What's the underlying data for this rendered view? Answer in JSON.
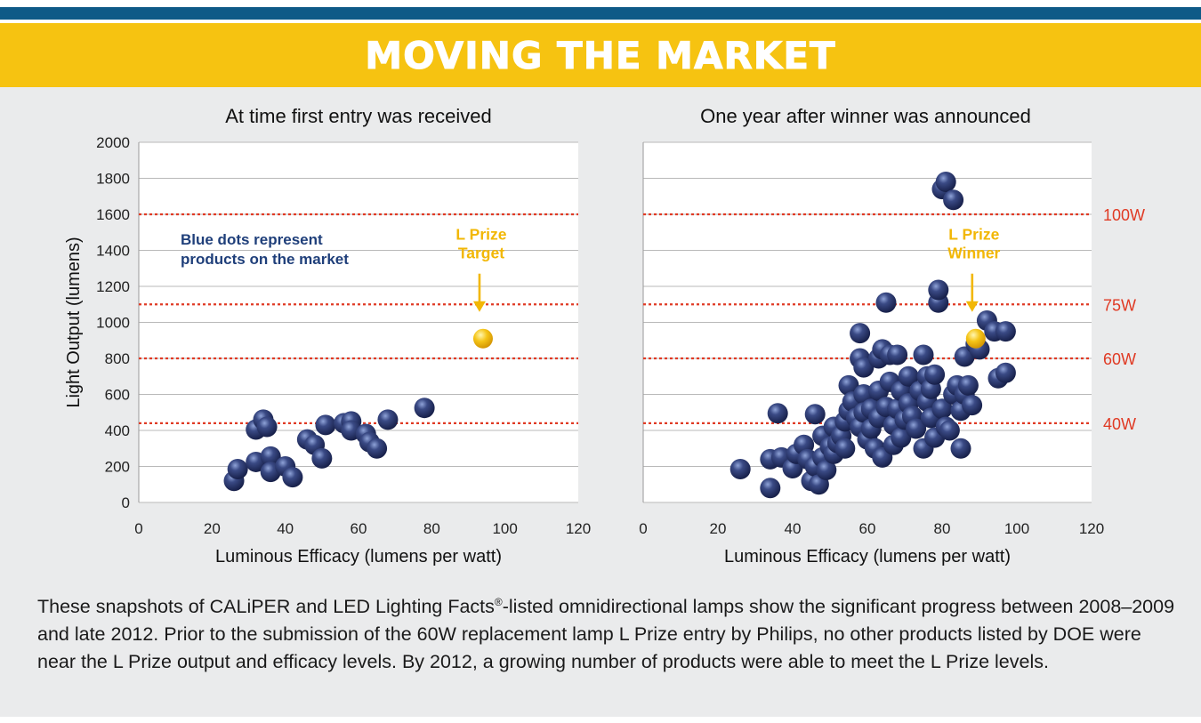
{
  "header": {
    "title": "MOVING THE MARKET"
  },
  "caption": {
    "text_before_mark": "These snapshots of CALiPER and LED Lighting Facts",
    "registered_mark": "®",
    "text_after_mark": "-listed omnidirectional lamps show the significant progress between 2008–2009 and late 2012. Prior to the submission of the 60W replacement lamp L Prize entry by Philips, no other products listed by DOE were near the L Prize output and efficacy levels. By 2012, a growing number of products were able to meet the L Prize levels."
  },
  "colors": {
    "banner": "#f6c311",
    "top_bar": "#0e5a87",
    "panel": "#eaebec",
    "dot": "#1f2a5c",
    "gold": "#f2b705",
    "reference_line": "#e03a24",
    "note_text": "#1f3f7a"
  },
  "chart_data": [
    {
      "type": "scatter",
      "title": "At time first entry was received",
      "xlabel": "Luminous Efficacy (lumens per watt)",
      "ylabel": "Light Output (lumens)",
      "xlim": [
        0,
        120
      ],
      "ylim": [
        0,
        2000
      ],
      "xticks": [
        0,
        20,
        40,
        60,
        80,
        100,
        120
      ],
      "yticks": [
        0,
        200,
        400,
        600,
        800,
        1000,
        1200,
        1400,
        1600,
        1800,
        2000
      ],
      "grid": "horizontal",
      "reference_lines": [
        {
          "y": 1600
        },
        {
          "y": 1100
        },
        {
          "y": 800
        },
        {
          "y": 440
        }
      ],
      "note": "Blue dots represent\nproducts on the market",
      "series": [
        {
          "name": "Blue dots represent products on the market",
          "points": [
            [
              26,
              120
            ],
            [
              27,
              185
            ],
            [
              32,
              405
            ],
            [
              32,
              225
            ],
            [
              34,
              460
            ],
            [
              35,
              420
            ],
            [
              36,
              255
            ],
            [
              36,
              170
            ],
            [
              40,
              200
            ],
            [
              42,
              140
            ],
            [
              46,
              350
            ],
            [
              48,
              320
            ],
            [
              50,
              245
            ],
            [
              51,
              430
            ],
            [
              56,
              440
            ],
            [
              58,
              450
            ],
            [
              58,
              400
            ],
            [
              62,
              380
            ],
            [
              63,
              335
            ],
            [
              65,
              300
            ],
            [
              68,
              460
            ],
            [
              78,
              525
            ]
          ]
        },
        {
          "name": "L Prize Target",
          "label": "L Prize\nTarget",
          "points": [
            [
              94,
              910
            ]
          ]
        }
      ]
    },
    {
      "type": "scatter",
      "title": "One year after winner was announced",
      "xlabel": "Luminous Efficacy (lumens per watt)",
      "ylabel": "",
      "xlim": [
        0,
        120
      ],
      "ylim": [
        0,
        2000
      ],
      "xticks": [
        0,
        20,
        40,
        60,
        80,
        100,
        120
      ],
      "yticks": [
        0,
        200,
        400,
        600,
        800,
        1000,
        1200,
        1400,
        1600,
        1800,
        2000
      ],
      "grid": "horizontal",
      "reference_lines": [
        {
          "y": 1600,
          "label": "100W"
        },
        {
          "y": 1100,
          "label": "75W"
        },
        {
          "y": 800,
          "label": "60W"
        },
        {
          "y": 440,
          "label": "40W"
        }
      ],
      "series": [
        {
          "name": "Blue dots",
          "points": [
            [
              26,
              185
            ],
            [
              34,
              80
            ],
            [
              34,
              240
            ],
            [
              37,
              250
            ],
            [
              36,
              495
            ],
            [
              40,
              190
            ],
            [
              41,
              270
            ],
            [
              43,
              320
            ],
            [
              44,
              240
            ],
            [
              45,
              120
            ],
            [
              46,
              200
            ],
            [
              46,
              490
            ],
            [
              47,
              100
            ],
            [
              48,
              370
            ],
            [
              48,
              250
            ],
            [
              49,
              180
            ],
            [
              50,
              310
            ],
            [
              51,
              420
            ],
            [
              51,
              270
            ],
            [
              52,
              330
            ],
            [
              53,
              370
            ],
            [
              54,
              450
            ],
            [
              54,
              300
            ],
            [
              55,
              510
            ],
            [
              55,
              650
            ],
            [
              56,
              560
            ],
            [
              57,
              470
            ],
            [
              58,
              420
            ],
            [
              58,
              940
            ],
            [
              58,
              800
            ],
            [
              59,
              750
            ],
            [
              59,
              600
            ],
            [
              59,
              500
            ],
            [
              60,
              350
            ],
            [
              61,
              520
            ],
            [
              61,
              410
            ],
            [
              62,
              300
            ],
            [
              63,
              800
            ],
            [
              63,
              620
            ],
            [
              63,
              470
            ],
            [
              64,
              850
            ],
            [
              64,
              250
            ],
            [
              65,
              1110
            ],
            [
              65,
              530
            ],
            [
              66,
              820
            ],
            [
              66,
              670
            ],
            [
              67,
              430
            ],
            [
              67,
              320
            ],
            [
              68,
              820
            ],
            [
              68,
              520
            ],
            [
              69,
              620
            ],
            [
              69,
              360
            ],
            [
              70,
              460
            ],
            [
              71,
              700
            ],
            [
              71,
              550
            ],
            [
              72,
              480
            ],
            [
              73,
              410
            ],
            [
              74,
              620
            ],
            [
              75,
              820
            ],
            [
              75,
              300
            ],
            [
              76,
              560
            ],
            [
              76,
              700
            ],
            [
              77,
              630
            ],
            [
              77,
              470
            ],
            [
              78,
              360
            ],
            [
              78,
              710
            ],
            [
              79,
              1110
            ],
            [
              79,
              1180
            ],
            [
              80,
              1740
            ],
            [
              80,
              520
            ],
            [
              81,
              1780
            ],
            [
              81,
              420
            ],
            [
              82,
              400
            ],
            [
              83,
              1680
            ],
            [
              83,
              600
            ],
            [
              84,
              650
            ],
            [
              85,
              300
            ],
            [
              85,
              510
            ],
            [
              86,
              810
            ],
            [
              86,
              600
            ],
            [
              87,
              650
            ],
            [
              88,
              540
            ],
            [
              89,
              880
            ],
            [
              90,
              850
            ],
            [
              92,
              1010
            ],
            [
              94,
              950
            ],
            [
              95,
              690
            ],
            [
              97,
              950
            ],
            [
              97,
              720
            ]
          ]
        },
        {
          "name": "L Prize Winner",
          "label": "L Prize\nWinner",
          "points": [
            [
              89,
              910
            ]
          ]
        }
      ]
    }
  ]
}
